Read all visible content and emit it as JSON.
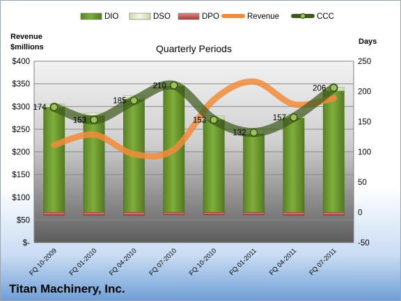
{
  "chart_data": {
    "type": "bar",
    "title": "Quarterly Periods",
    "company": "Titan Machinery, Inc.",
    "left_axis_title": [
      "Revenue",
      "$millions"
    ],
    "right_axis_title": "Days",
    "categories": [
      "FQ 10-2009",
      "FQ 01-2010",
      "FQ 04-2010",
      "FQ 07-2010",
      "FQ 10-2010",
      "FQ 01-2011",
      "FQ 04-2011",
      "FQ 07-2011"
    ],
    "left_axis": {
      "ylim": [
        0,
        400
      ],
      "ticks": [
        "$-",
        "$50",
        "$100",
        "$150",
        "$200",
        "$250",
        "$300",
        "$350",
        "$400"
      ]
    },
    "right_axis": {
      "ylim": [
        -50,
        250
      ],
      "ticks": [
        "-50",
        "0",
        "50",
        "100",
        "150",
        "200",
        "250"
      ]
    },
    "grid": true,
    "legend_position": "top",
    "legend": [
      "DIO",
      "DSO",
      "DPO",
      "Revenue",
      "CCC"
    ],
    "series": [
      {
        "name": "DIO",
        "kind": "stacked-bar",
        "axis": "right",
        "color": "#6f9a2f",
        "values": [
          174,
          160,
          187,
          209,
          153,
          130,
          156,
          201
        ]
      },
      {
        "name": "DSO",
        "kind": "stacked-bar",
        "axis": "right",
        "color": "#e3eccd",
        "values": [
          5,
          4,
          6,
          5,
          7,
          7,
          6,
          6
        ]
      },
      {
        "name": "DPO",
        "kind": "bar-below-zero",
        "axis": "right",
        "color": "#c0504d",
        "values": [
          -5,
          -5,
          -5,
          -4,
          -4,
          -4,
          -5,
          -5
        ]
      },
      {
        "name": "Revenue",
        "kind": "smooth-line",
        "axis": "left",
        "color": "#f28c3a",
        "values": [
          215,
          238,
          195,
          205,
          315,
          355,
          305,
          318
        ]
      },
      {
        "name": "CCC",
        "kind": "smooth-line",
        "axis": "right",
        "color": "#4f6b2a",
        "values": [
          174,
          153,
          185,
          210,
          153,
          132,
          157,
          206
        ]
      }
    ],
    "data_labels": [
      "174",
      "153",
      "185",
      "210",
      "153",
      "132",
      "157",
      "206"
    ]
  }
}
